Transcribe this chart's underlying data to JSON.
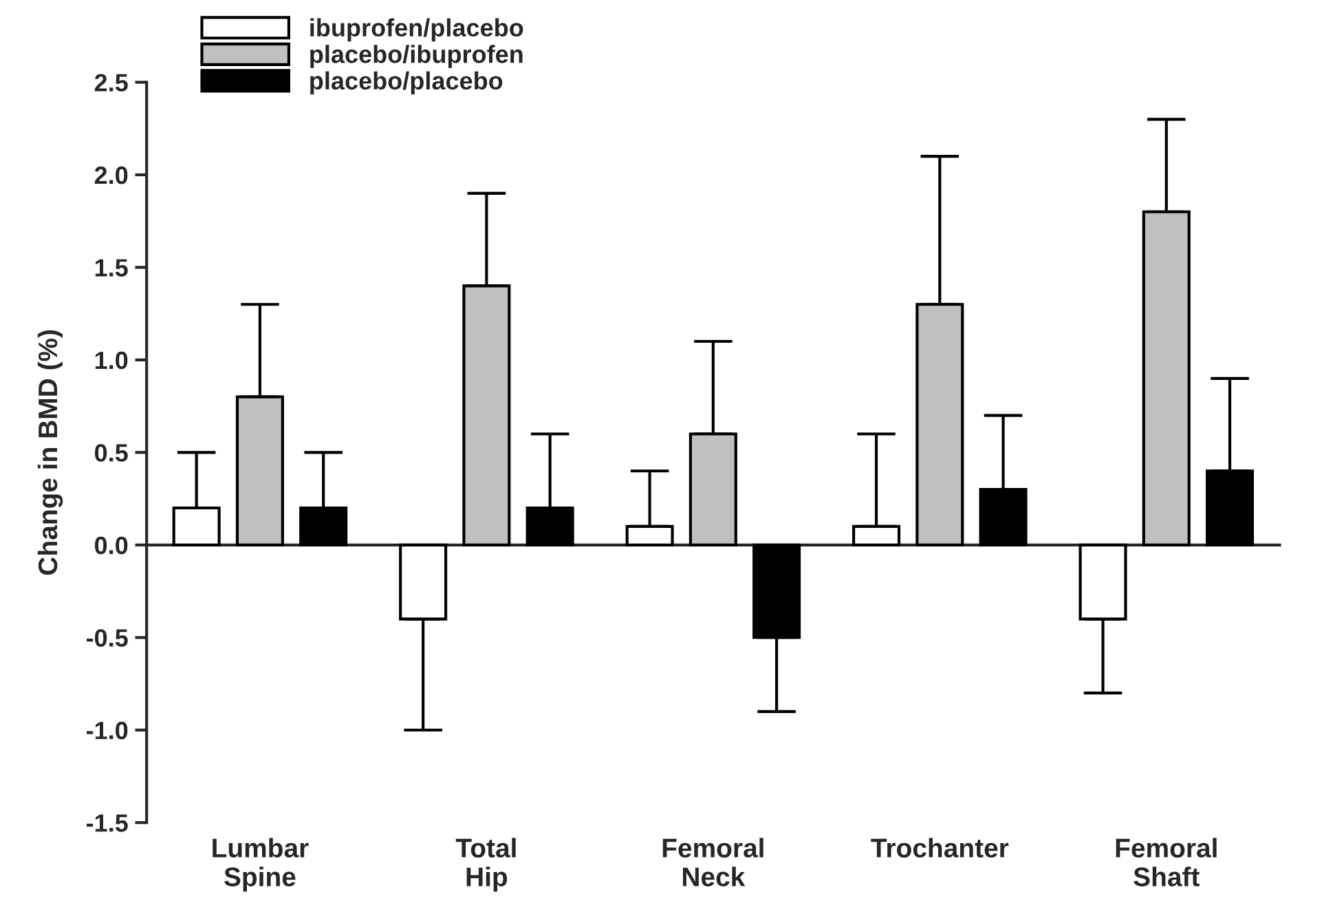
{
  "chart_data": {
    "type": "bar",
    "ylabel": "Change in BMD (%)",
    "categories": [
      "Lumbar\nSpine",
      "Total\nHip",
      "Femoral\nNeck",
      "Trochanter",
      "Femoral\nShaft"
    ],
    "series": [
      {
        "name": "ibuprofen/placebo",
        "color": "#ffffff",
        "values": [
          0.2,
          -0.4,
          0.1,
          0.1,
          -0.4
        ],
        "errors": [
          [
            0.2,
            0.5
          ],
          [
            -1.0,
            -0.4
          ],
          [
            0.1,
            0.4
          ],
          [
            0.1,
            0.6
          ],
          [
            -0.8,
            -0.4
          ]
        ]
      },
      {
        "name": "placebo/ibuprofen",
        "color": "#c0c0c0",
        "values": [
          0.8,
          1.4,
          0.6,
          1.3,
          1.8
        ],
        "errors": [
          [
            0.8,
            1.3
          ],
          [
            1.4,
            1.9
          ],
          [
            0.6,
            1.1
          ],
          [
            1.3,
            2.1
          ],
          [
            1.8,
            2.3
          ]
        ]
      },
      {
        "name": "placebo/placebo",
        "color": "#000000",
        "values": [
          0.2,
          0.2,
          -0.5,
          0.3,
          0.4
        ],
        "errors": [
          [
            0.2,
            0.5
          ],
          [
            0.2,
            0.6
          ],
          [
            -0.9,
            -0.5
          ],
          [
            0.3,
            0.7
          ],
          [
            0.4,
            0.9
          ]
        ]
      }
    ],
    "ylim": [
      -1.5,
      2.5
    ],
    "yticks": [
      {
        "value": -1.5,
        "label": "-1.5"
      },
      {
        "value": -1.0,
        "label": "-1.0"
      },
      {
        "value": -0.5,
        "label": "-0.5"
      },
      {
        "value": 0,
        "label": "0.0"
      },
      {
        "value": 0.5,
        "label": "0.5"
      },
      {
        "value": 1.0,
        "label": "1.0"
      },
      {
        "value": 1.5,
        "label": "1.5"
      },
      {
        "value": 2.0,
        "label": "2.0"
      },
      {
        "value": 2.5,
        "label": "2.5"
      }
    ],
    "legend": "top left"
  }
}
